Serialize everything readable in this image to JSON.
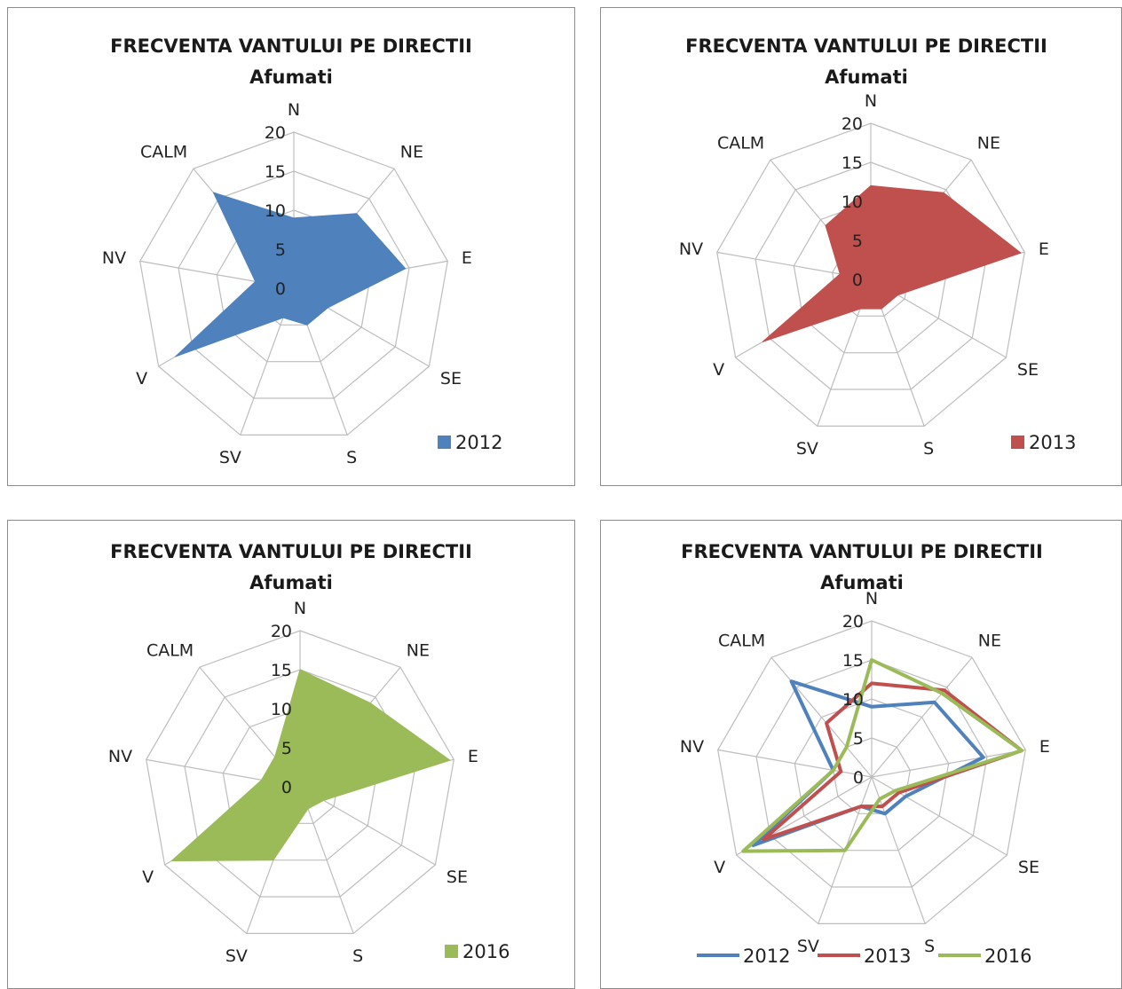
{
  "chart_data": [
    {
      "type": "radar",
      "style": "filled",
      "title": "FRECVENTA VANTULUI PE DIRECTII",
      "subtitle": "Afumati",
      "categories": [
        "N",
        "NE",
        "E",
        "SE",
        "S",
        "SV",
        "V",
        "NV",
        "CALM"
      ],
      "tick_labels": [
        "0",
        "5",
        "10",
        "15",
        "20"
      ],
      "rlim": [
        0,
        20
      ],
      "grid": true,
      "legend_position": "bottom-right",
      "series": [
        {
          "name": "2012",
          "color": "#4f81bd",
          "values": [
            9,
            12.5,
            14.5,
            5,
            5,
            4,
            17.5,
            5,
            16
          ]
        }
      ]
    },
    {
      "type": "radar",
      "style": "filled",
      "title": "FRECVENTA VANTULUI PE DIRECTII",
      "subtitle": "Afumati",
      "categories": [
        "N",
        "NE",
        "E",
        "SE",
        "S",
        "SV",
        "V",
        "NV",
        "CALM"
      ],
      "tick_labels": [
        "0",
        "5",
        "10",
        "15",
        "20"
      ],
      "rlim": [
        0,
        20
      ],
      "grid": true,
      "legend_position": "bottom-right",
      "series": [
        {
          "name": "2013",
          "color": "#c0504d",
          "values": [
            12,
            14.5,
            19.5,
            4,
            4,
            4,
            16,
            4,
            9
          ]
        }
      ]
    },
    {
      "type": "radar",
      "style": "filled",
      "title": "FRECVENTA VANTULUI PE DIRECTII",
      "subtitle": "Afumati",
      "categories": [
        "N",
        "NE",
        "E",
        "SE",
        "S",
        "SV",
        "V",
        "NV",
        "CALM"
      ],
      "tick_labels": [
        "0",
        "5",
        "10",
        "15",
        "20"
      ],
      "rlim": [
        0,
        20
      ],
      "grid": true,
      "legend_position": "bottom-right",
      "series": [
        {
          "name": "2016",
          "color": "#9bbb59",
          "values": [
            15,
            14,
            19.5,
            3.5,
            3,
            10,
            19,
            5,
            5
          ]
        }
      ]
    },
    {
      "type": "radar",
      "style": "line",
      "title": "FRECVENTA VANTULUI PE DIRECTII",
      "subtitle": "Afumati",
      "categories": [
        "N",
        "NE",
        "E",
        "SE",
        "S",
        "SV",
        "V",
        "NV",
        "CALM"
      ],
      "tick_labels": [
        "0",
        "5",
        "10",
        "15",
        "20"
      ],
      "rlim": [
        0,
        20
      ],
      "grid": true,
      "legend_position": "bottom",
      "series": [
        {
          "name": "2012",
          "color": "#4f81bd",
          "values": [
            9,
            12.5,
            14.5,
            5,
            5,
            4,
            17.5,
            5,
            16
          ]
        },
        {
          "name": "2013",
          "color": "#c0504d",
          "values": [
            12,
            14.5,
            19.5,
            4,
            4,
            4,
            16,
            4,
            9
          ]
        },
        {
          "name": "2016",
          "color": "#9bbb59",
          "values": [
            15,
            14,
            19.5,
            3.5,
            3,
            10,
            19,
            5,
            5
          ]
        }
      ]
    }
  ]
}
